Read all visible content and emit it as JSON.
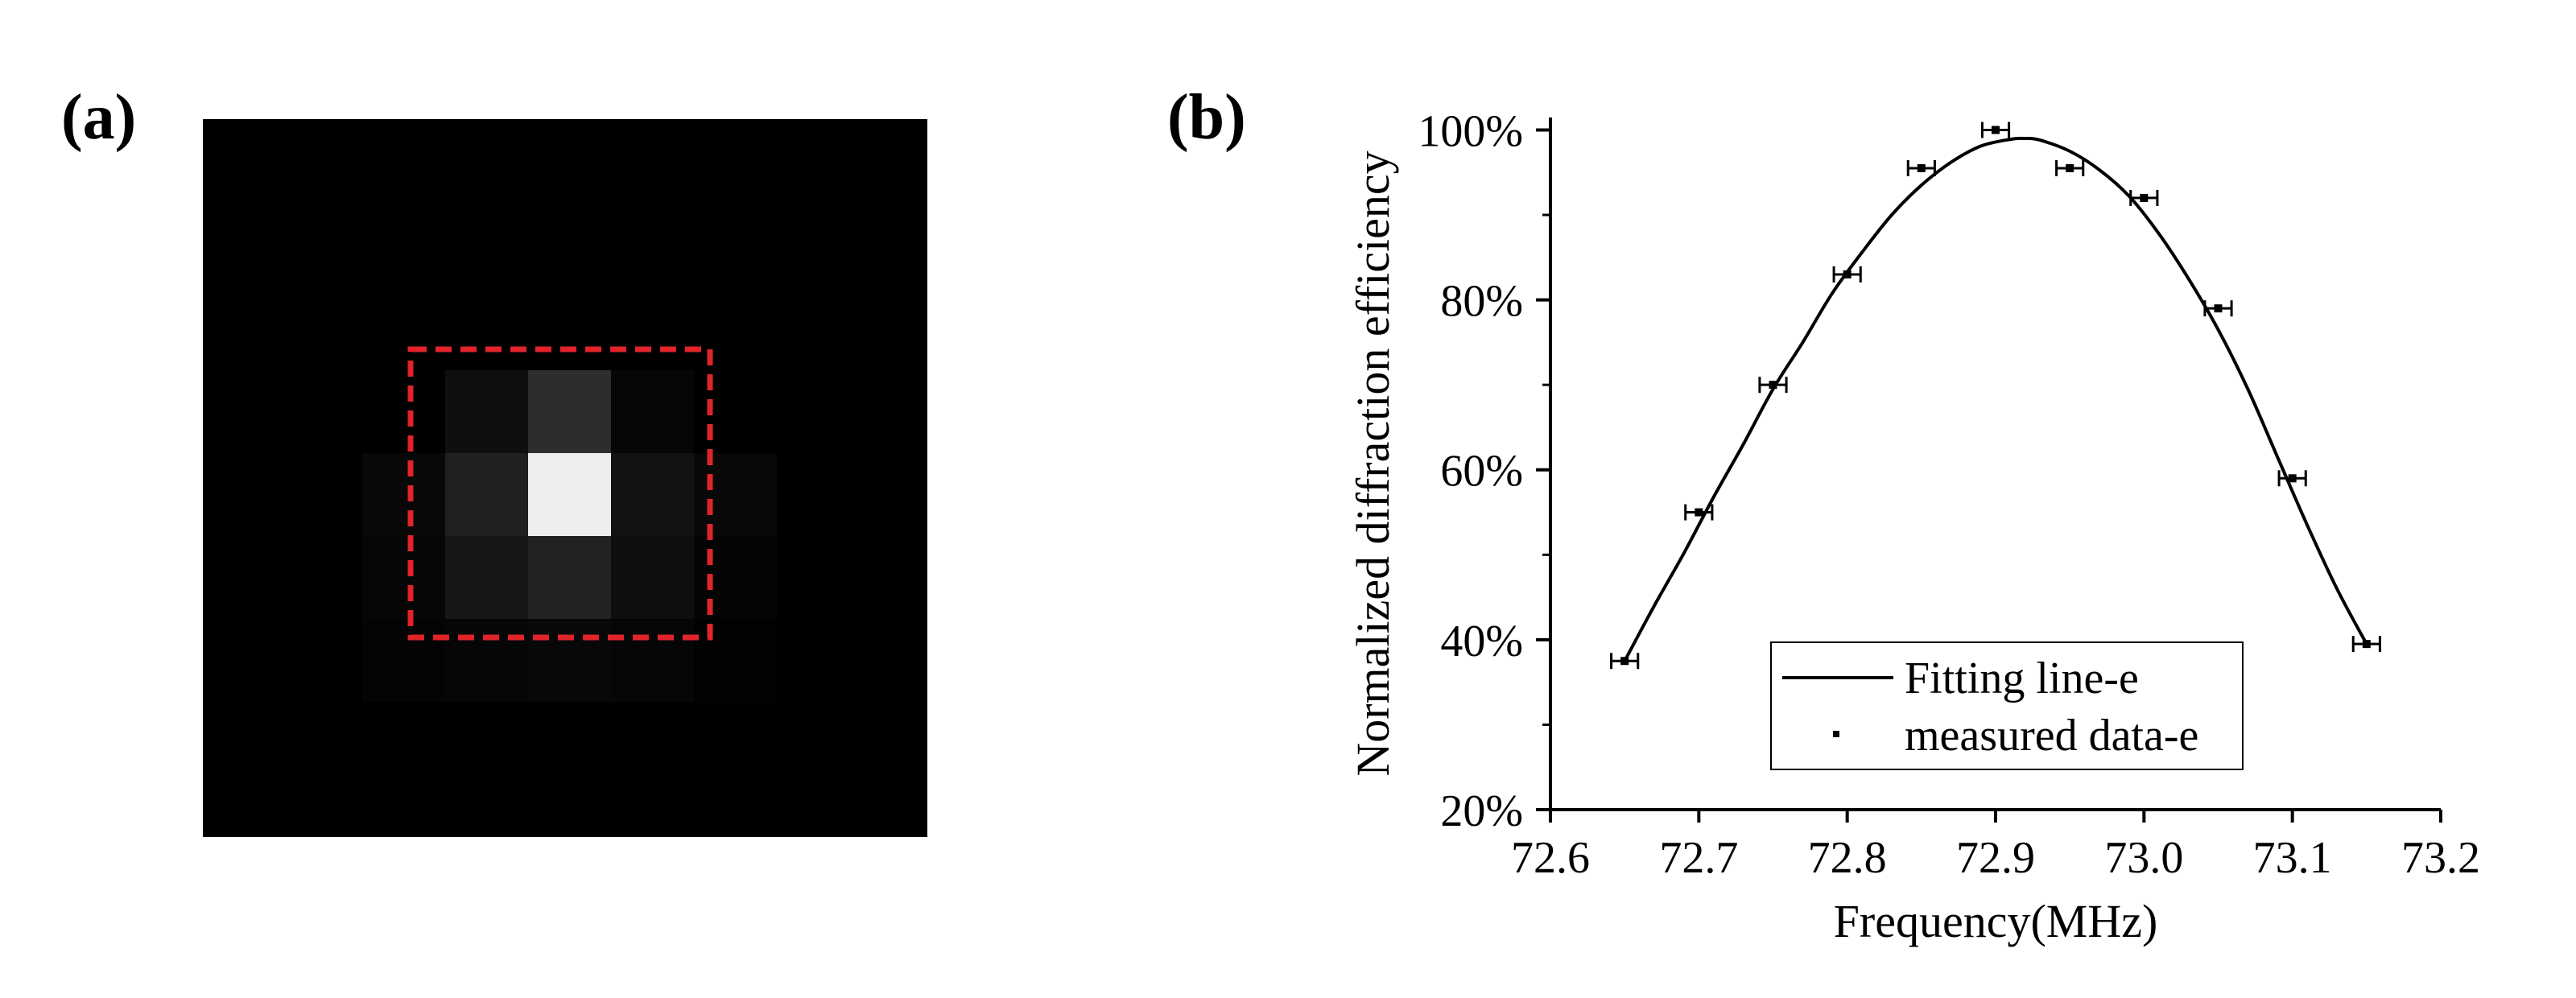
{
  "panels": {
    "a": {
      "label": "(a)"
    },
    "b": {
      "label": "(b)"
    }
  },
  "image_panel": {
    "background_color": "#000000",
    "roi_box_color": "#e0242a",
    "spot_grid_intensity": [
      [
        0,
        0,
        0,
        0,
        0,
        0,
        0
      ],
      [
        0,
        0,
        15,
        45,
        6,
        0,
        0
      ],
      [
        0,
        8,
        32,
        238,
        18,
        8,
        0
      ],
      [
        0,
        6,
        22,
        34,
        14,
        4,
        0
      ],
      [
        0,
        4,
        6,
        8,
        6,
        2,
        0
      ],
      [
        0,
        0,
        0,
        0,
        0,
        0,
        0
      ]
    ]
  },
  "chart_data": {
    "type": "scatter",
    "title": "",
    "xlabel": "Frequency(MHz)",
    "ylabel": "Normalized diffraction efficiency",
    "xlim": [
      72.6,
      73.2
    ],
    "ylim": [
      20,
      100
    ],
    "x_ticks": [
      72.6,
      72.7,
      72.8,
      72.9,
      73.0,
      73.1,
      73.2
    ],
    "x_tick_labels": [
      "72.6",
      "72.7",
      "72.8",
      "72.9",
      "73.0",
      "73.1",
      "73.2"
    ],
    "y_ticks": [
      20,
      40,
      60,
      80,
      100
    ],
    "y_tick_labels": [
      "20%",
      "40%",
      "60%",
      "80%",
      "100%"
    ],
    "y_minor_ticks": [
      30,
      50,
      70,
      90
    ],
    "grid": false,
    "legend_position": "bottom-center",
    "series": [
      {
        "name": "Fitting line-e",
        "kind": "line",
        "x": [
          72.65,
          72.67,
          72.69,
          72.71,
          72.73,
          72.75,
          72.77,
          72.79,
          72.81,
          72.83,
          72.85,
          72.87,
          72.89,
          72.91,
          72.92,
          72.93,
          72.95,
          72.97,
          72.99,
          73.01,
          73.03,
          73.05,
          73.07,
          73.09,
          73.11,
          73.13,
          73.15
        ],
        "y": [
          37.5,
          44.0,
          50.2,
          56.8,
          63.0,
          69.5,
          75.0,
          80.8,
          85.6,
          90.0,
          93.5,
          96.2,
          98.1,
          98.9,
          99.0,
          98.8,
          97.5,
          95.3,
          92.2,
          87.8,
          82.5,
          76.5,
          69.5,
          61.5,
          53.5,
          46.0,
          39.5
        ]
      },
      {
        "name": "measured data-e",
        "kind": "points",
        "x": [
          72.65,
          72.7,
          72.75,
          72.8,
          72.85,
          72.9,
          72.95,
          73.0,
          73.05,
          73.1,
          73.15
        ],
        "y": [
          37.5,
          55.0,
          70.0,
          83.0,
          95.5,
          100.0,
          95.5,
          92.0,
          79.0,
          59.0,
          39.5
        ],
        "x_error": [
          0.009,
          0.009,
          0.009,
          0.009,
          0.009,
          0.009,
          0.009,
          0.009,
          0.009,
          0.009,
          0.009
        ]
      }
    ]
  }
}
